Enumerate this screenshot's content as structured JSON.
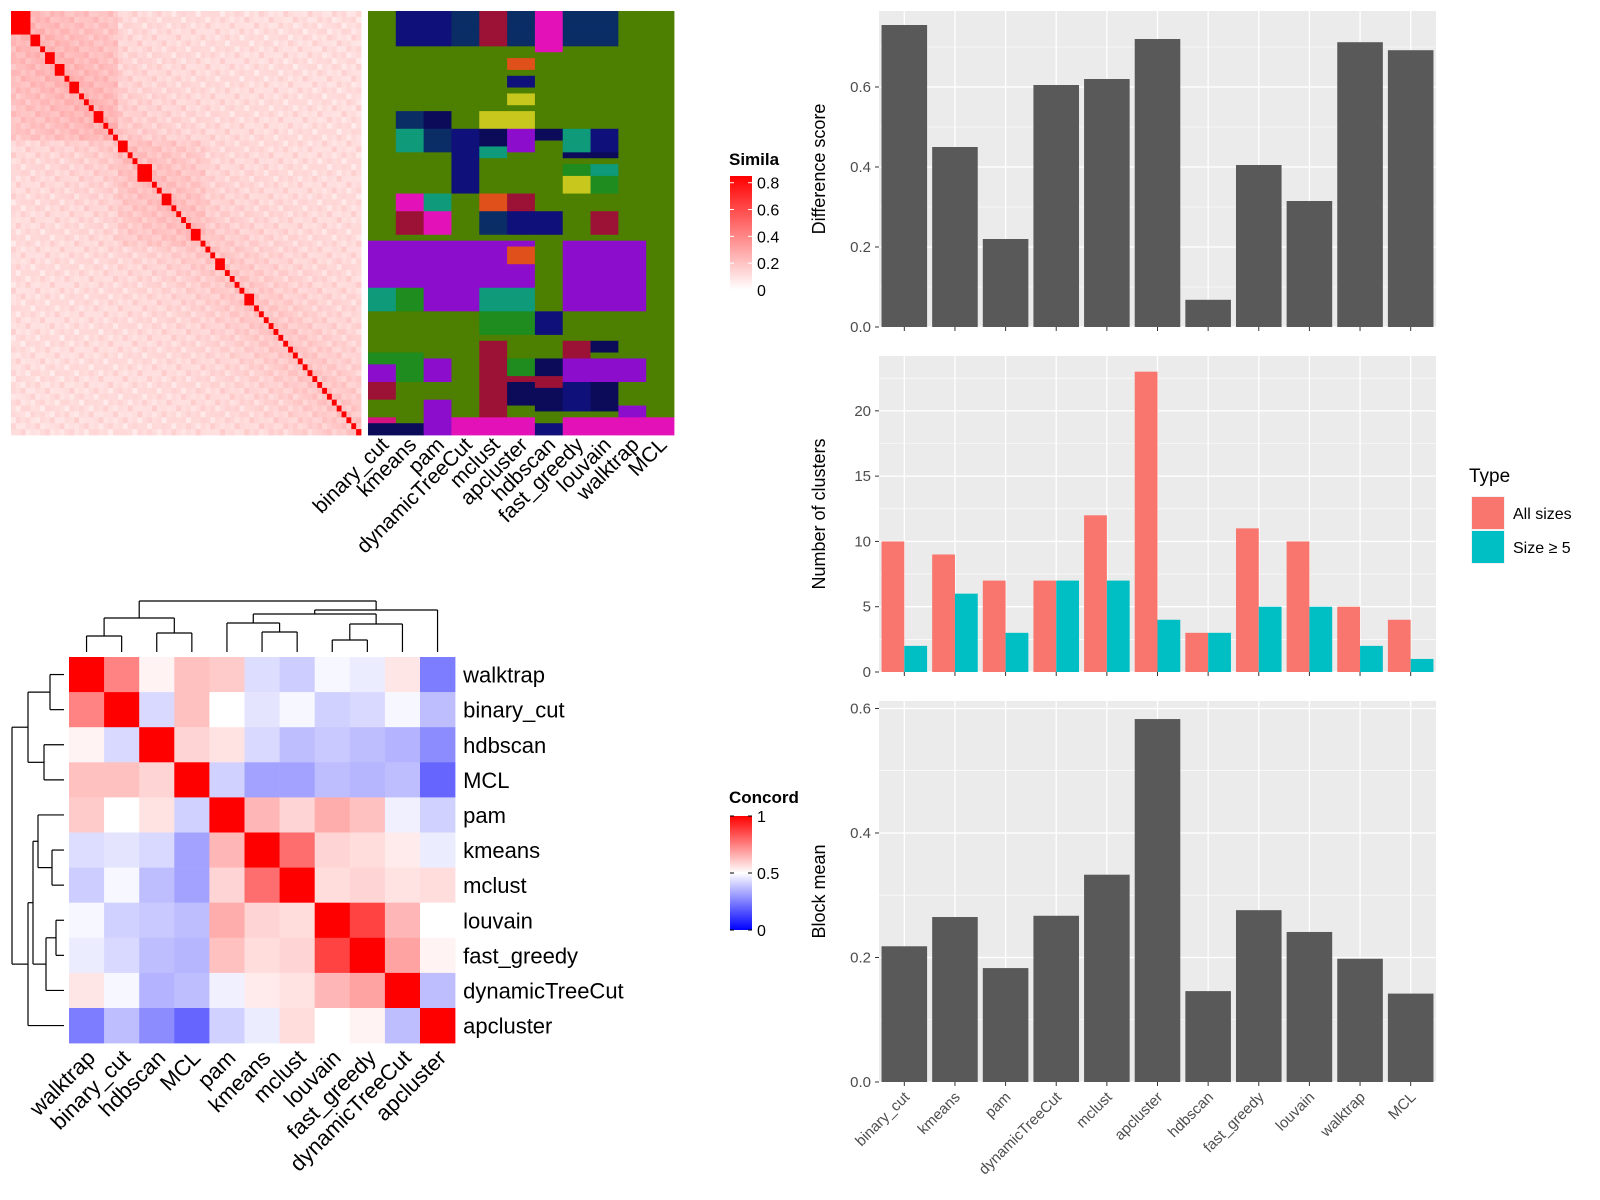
{
  "chart_data": [
    {
      "type": "heatmap",
      "name": "similarity-heatmap",
      "legend_title": "Simila",
      "legend_ticks": [
        0.8,
        0.6,
        0.4,
        0.2,
        0
      ],
      "color_low": "#ffffff",
      "color_high": "#ff0000",
      "n_terms": 72,
      "diagonal_blocks": [
        4,
        2,
        1,
        2,
        2,
        1,
        2,
        1,
        1,
        1,
        2,
        1,
        1,
        1,
        2,
        1,
        1,
        3,
        1,
        1,
        2,
        1,
        1,
        1,
        1,
        2,
        1,
        1,
        1,
        2,
        1,
        1,
        1,
        1,
        2,
        1,
        1,
        1,
        1,
        1,
        1,
        1,
        1,
        1,
        1,
        1,
        1,
        1,
        1,
        1,
        1,
        1
      ]
    },
    {
      "type": "heatmap",
      "name": "cluster-assignment-heatmap",
      "methods": [
        "binary_cut",
        "kmeans",
        "pam",
        "dynamicTreeCut",
        "mclust",
        "apcluster",
        "hdbscan",
        "fast_greedy",
        "louvain",
        "walktrap",
        "MCL"
      ],
      "palette": [
        "#4d7f00",
        "#10107a",
        "#0b2d66",
        "#9b1236",
        "#e312b8",
        "#1e8c1e",
        "#8c0ecc",
        "#0f9a7a",
        "#e0501a",
        "#c7c71e",
        "#0b0b5a",
        "#d41280"
      ]
    },
    {
      "type": "heatmap",
      "name": "concordance-heatmap",
      "legend_title": "Concord",
      "legend_ticks": [
        1,
        0.5,
        0
      ],
      "color_low": "#0000ff",
      "color_mid": "#ffffff",
      "color_high": "#ff0000",
      "rows": [
        "walktrap",
        "binary_cut",
        "hdbscan",
        "MCL",
        "pam",
        "kmeans",
        "mclust",
        "louvain",
        "fast_greedy",
        "dynamicTreeCut",
        "apcluster"
      ],
      "columns": [
        "walktrap",
        "binary_cut",
        "hdbscan",
        "MCL",
        "pam",
        "kmeans",
        "mclust",
        "louvain",
        "fast_greedy",
        "dynamicTreeCut",
        "apcluster"
      ],
      "values": [
        [
          1.0,
          0.76,
          0.53,
          0.64,
          0.62,
          0.41,
          0.37,
          0.48,
          0.45,
          0.56,
          0.16
        ],
        [
          0.76,
          1.0,
          0.4,
          0.64,
          0.5,
          0.43,
          0.48,
          0.38,
          0.4,
          0.48,
          0.33
        ],
        [
          0.53,
          0.4,
          1.0,
          0.6,
          0.57,
          0.4,
          0.33,
          0.36,
          0.33,
          0.3,
          0.2
        ],
        [
          0.64,
          0.64,
          0.6,
          1.0,
          0.38,
          0.26,
          0.26,
          0.33,
          0.31,
          0.33,
          0.1
        ],
        [
          0.62,
          0.5,
          0.57,
          0.38,
          1.0,
          0.66,
          0.6,
          0.68,
          0.64,
          0.46,
          0.38
        ],
        [
          0.41,
          0.43,
          0.4,
          0.26,
          0.66,
          1.0,
          0.8,
          0.6,
          0.58,
          0.55,
          0.45
        ],
        [
          0.37,
          0.48,
          0.33,
          0.26,
          0.6,
          0.8,
          1.0,
          0.58,
          0.6,
          0.57,
          0.58
        ],
        [
          0.48,
          0.38,
          0.36,
          0.33,
          0.68,
          0.6,
          0.58,
          1.0,
          0.88,
          0.66,
          0.5
        ],
        [
          0.45,
          0.4,
          0.33,
          0.31,
          0.64,
          0.58,
          0.6,
          0.88,
          1.0,
          0.7,
          0.53
        ],
        [
          0.56,
          0.48,
          0.3,
          0.33,
          0.46,
          0.55,
          0.57,
          0.66,
          0.7,
          1.0,
          0.33
        ],
        [
          0.16,
          0.33,
          0.2,
          0.1,
          0.38,
          0.45,
          0.58,
          0.5,
          0.53,
          0.33,
          1.0
        ]
      ]
    },
    {
      "type": "bar",
      "name": "difference-score-chart",
      "categories": [
        "binary_cut",
        "kmeans",
        "pam",
        "dynamicTreeCut",
        "mclust",
        "apcluster",
        "hdbscan",
        "fast_greedy",
        "louvain",
        "walktrap",
        "MCL"
      ],
      "values": [
        0.755,
        0.45,
        0.22,
        0.605,
        0.62,
        0.72,
        0.068,
        0.405,
        0.315,
        0.712,
        0.692
      ],
      "ylabel": "Difference score",
      "yticks": [
        0.0,
        0.2,
        0.4,
        0.6
      ],
      "ytick_labels": [
        "0.0",
        "0.2",
        "0.4",
        "0.6"
      ],
      "ylim": [
        0,
        0.79
      ],
      "bar_color": "#595959"
    },
    {
      "type": "bar",
      "name": "number-of-clusters-chart",
      "categories": [
        "binary_cut",
        "kmeans",
        "pam",
        "dynamicTreeCut",
        "mclust",
        "apcluster",
        "hdbscan",
        "fast_greedy",
        "louvain",
        "walktrap",
        "MCL"
      ],
      "series": [
        {
          "name": "All sizes",
          "values": [
            10,
            9,
            7,
            7,
            12,
            23,
            3,
            11,
            10,
            5,
            4
          ],
          "color": "#f8766d"
        },
        {
          "name": "Size ≥ 5",
          "values": [
            2,
            6,
            3,
            7,
            7,
            4,
            3,
            5,
            5,
            2,
            1
          ],
          "color": "#00bfc4"
        }
      ],
      "ylabel": "Number of clusters",
      "yticks": [
        0,
        5,
        10,
        15,
        20
      ],
      "ytick_labels": [
        "0",
        "5",
        "10",
        "15",
        "20"
      ],
      "ylim": [
        0,
        24.2
      ],
      "legend_title": "Type",
      "legend_position": "right"
    },
    {
      "type": "bar",
      "name": "block-mean-chart",
      "categories": [
        "binary_cut",
        "kmeans",
        "pam",
        "dynamicTreeCut",
        "mclust",
        "apcluster",
        "hdbscan",
        "fast_greedy",
        "louvain",
        "walktrap",
        "MCL"
      ],
      "values": [
        0.218,
        0.265,
        0.183,
        0.267,
        0.333,
        0.583,
        0.146,
        0.276,
        0.241,
        0.198,
        0.142
      ],
      "ylabel": "Block mean",
      "yticks": [
        0.0,
        0.2,
        0.4,
        0.6
      ],
      "ytick_labels": [
        "0.0",
        "0.2",
        "0.4",
        "0.6"
      ],
      "ylim": [
        0,
        0.612
      ],
      "bar_color": "#595959"
    }
  ]
}
